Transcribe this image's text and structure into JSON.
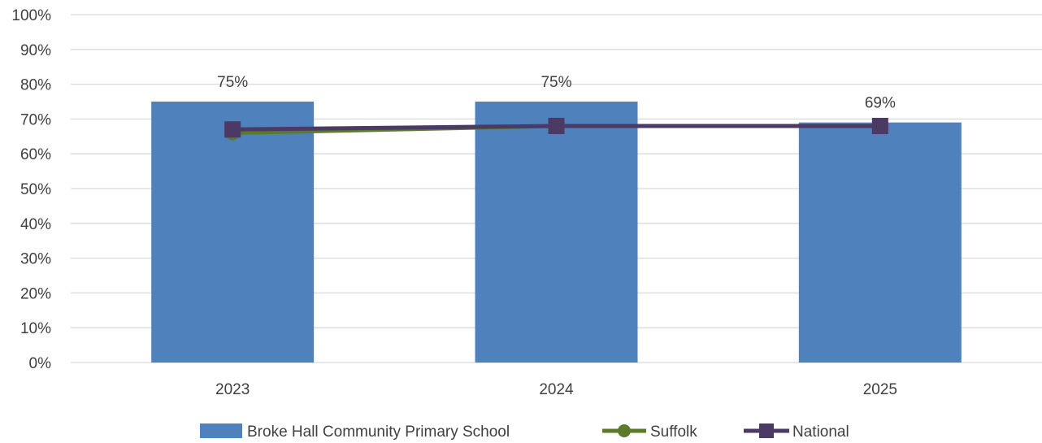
{
  "chart_data": {
    "type": "bar",
    "categories": [
      "2023",
      "2024",
      "2025"
    ],
    "ylim": [
      0,
      100
    ],
    "yticks": [
      "0%",
      "10%",
      "20%",
      "30%",
      "40%",
      "50%",
      "60%",
      "70%",
      "80%",
      "90%",
      "100%"
    ],
    "ytick_values": [
      0,
      10,
      20,
      30,
      40,
      50,
      60,
      70,
      80,
      90,
      100
    ],
    "grid": true,
    "legend_position": "bottom",
    "series": [
      {
        "name": "Broke Hall Community Primary School",
        "type": "bar",
        "values": [
          75,
          75,
          69
        ],
        "data_labels": [
          "75%",
          "75%",
          "69%"
        ],
        "color": "#4f81bd"
      },
      {
        "name": "Suffolk",
        "type": "line",
        "marker": "circle",
        "values": [
          66,
          68,
          68
        ],
        "color": "#5b7b2a"
      },
      {
        "name": "National",
        "type": "line",
        "marker": "square",
        "values": [
          67,
          68,
          68
        ],
        "color": "#4b3a63"
      }
    ]
  }
}
